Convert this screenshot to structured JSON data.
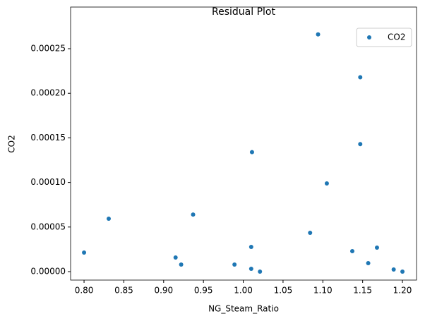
{
  "chart_data": {
    "type": "scatter",
    "title": "Residual Plot",
    "x_label": "NG_Steam_Ratio",
    "y_label": "CO2",
    "legend": "upper right",
    "grid": false,
    "series": [
      {
        "name": "CO2",
        "color": "#1f77b4",
        "x": [
          0.8,
          0.831,
          0.915,
          0.937,
          0.922,
          0.989,
          1.01,
          1.011,
          1.01,
          1.021,
          1.084,
          1.094,
          1.105,
          1.137,
          1.147,
          1.147,
          1.157,
          1.168,
          1.189,
          1.2
        ],
        "values": [
          2.14e-05,
          5.93e-05,
          1.58e-05,
          6.4e-05,
          7.9e-06,
          7.9e-06,
          2.77e-05,
          0.000134,
          3.2e-06,
          0.0,
          4.35e-05,
          0.000266,
          9.89e-05,
          2.29e-05,
          0.000218,
          0.000143,
          9.5e-06,
          2.69e-05,
          2.4e-06,
          0.0
        ]
      }
    ],
    "xlim": [
      0.7831,
      1.2177
    ],
    "ylim": [
      -9.5e-06,
      0.0002967
    ],
    "xticks": [
      {
        "value": 0.8,
        "label": "0.80"
      },
      {
        "value": 0.85,
        "label": "0.85"
      },
      {
        "value": 0.9,
        "label": "0.90"
      },
      {
        "value": 0.95,
        "label": "0.95"
      },
      {
        "value": 1.0,
        "label": "1.00"
      },
      {
        "value": 1.05,
        "label": "1.05"
      },
      {
        "value": 1.1,
        "label": "1.10"
      },
      {
        "value": 1.15,
        "label": "1.15"
      },
      {
        "value": 1.2,
        "label": "1.20"
      }
    ],
    "yticks": [
      {
        "value": 0,
        "label": "0.00000"
      },
      {
        "value": 5e-05,
        "label": "0.00005"
      },
      {
        "value": 0.0001,
        "label": "0.00010"
      },
      {
        "value": 0.00015,
        "label": "0.00015"
      },
      {
        "value": 0.0002,
        "label": "0.00020"
      },
      {
        "value": 0.00025,
        "label": "0.00025"
      }
    ]
  }
}
